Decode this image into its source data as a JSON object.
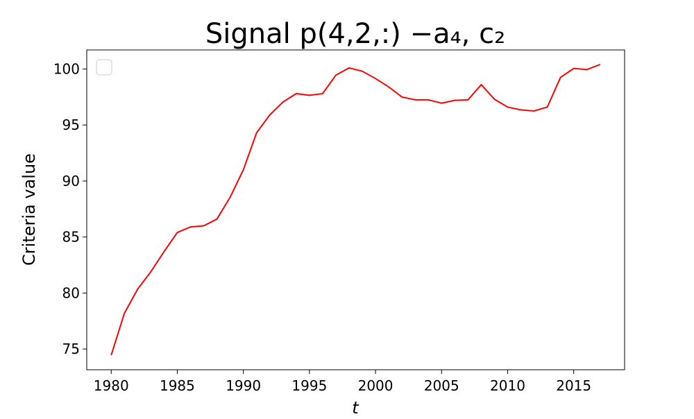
{
  "chart_data": {
    "type": "line",
    "title": "Signal p(4,2,:) −a₄, c₂",
    "x_label": "t",
    "y_label": "Criteria value",
    "x": [
      1980,
      1981,
      1982,
      1983,
      1984,
      1985,
      1986,
      1987,
      1988,
      1989,
      1990,
      1991,
      1992,
      1993,
      1994,
      1995,
      1996,
      1997,
      1998,
      1999,
      2000,
      2001,
      2002,
      2003,
      2004,
      2005,
      2006,
      2007,
      2008,
      2009,
      2010,
      2011,
      2012,
      2013,
      2014,
      2015,
      2016,
      2017
    ],
    "series": [
      {
        "color": "#ff0000",
        "values": [
          74.45,
          78.2,
          80.35,
          81.9,
          83.7,
          85.4,
          85.9,
          86.0,
          86.6,
          88.55,
          91.0,
          94.3,
          95.9,
          97.05,
          97.8,
          97.65,
          97.8,
          99.45,
          100.1,
          99.8,
          99.15,
          98.4,
          97.5,
          97.25,
          97.25,
          96.95,
          97.2,
          97.25,
          98.6,
          97.3,
          96.6,
          96.35,
          96.25,
          96.6,
          99.25,
          100.05,
          99.95,
          100.4
        ]
      }
    ],
    "xlim": [
      1978.15,
      2018.85
    ],
    "ylim": [
      73.15,
      101.7
    ],
    "xticks": [
      1980,
      1985,
      1990,
      1995,
      2000,
      2005,
      2010,
      2015
    ],
    "yticks": [
      75,
      80,
      85,
      90,
      95,
      100
    ]
  }
}
